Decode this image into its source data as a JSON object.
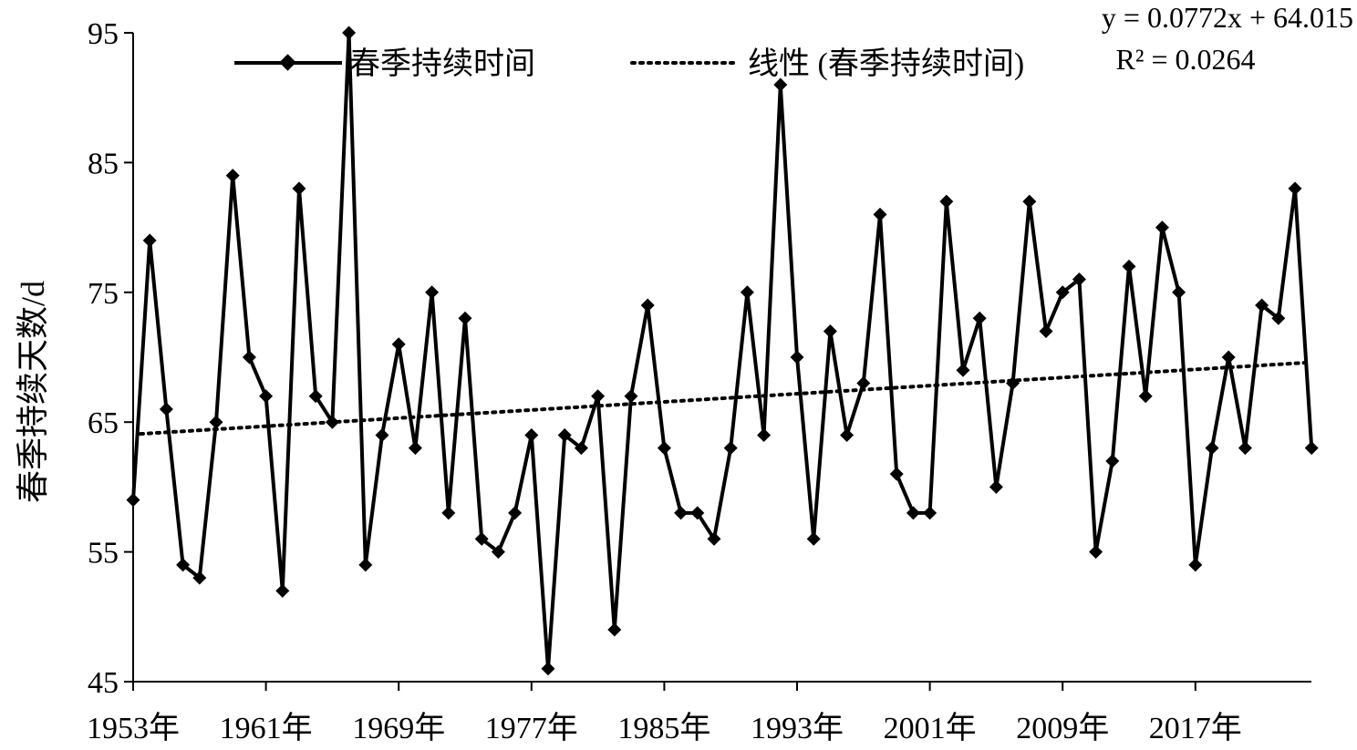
{
  "chart_data": {
    "type": "line",
    "ylabel": "春季持续天数/d",
    "xlabel": "",
    "ylim": [
      45,
      95
    ],
    "yticks": [
      "45",
      "55",
      "65",
      "75",
      "85",
      "95"
    ],
    "xtick_labels": [
      "1953年",
      "1961年",
      "1969年",
      "1977年",
      "1985年",
      "1993年",
      "2001年",
      "2009年",
      "2017年"
    ],
    "x": [
      1953,
      1954,
      1955,
      1956,
      1957,
      1958,
      1959,
      1960,
      1961,
      1962,
      1963,
      1964,
      1965,
      1966,
      1967,
      1968,
      1969,
      1970,
      1971,
      1972,
      1973,
      1974,
      1975,
      1976,
      1977,
      1978,
      1979,
      1980,
      1981,
      1982,
      1983,
      1984,
      1985,
      1986,
      1987,
      1988,
      1989,
      1990,
      1991,
      1992,
      1993,
      1994,
      1995,
      1996,
      1997,
      1998,
      1999,
      2000,
      2001,
      2002,
      2003,
      2004,
      2005,
      2006,
      2007,
      2008,
      2009,
      2010,
      2011,
      2012,
      2013,
      2014,
      2015,
      2016,
      2017,
      2018,
      2019,
      2020,
      2021,
      2022,
      2023,
      2024
    ],
    "series": [
      {
        "name": "春季持续时间",
        "values": [
          59,
          79,
          66,
          54,
          53,
          65,
          84,
          70,
          67,
          52,
          83,
          67,
          65,
          95,
          54,
          64,
          71,
          63,
          75,
          58,
          73,
          56,
          55,
          58,
          64,
          46,
          64,
          63,
          67,
          49,
          67,
          74,
          63,
          58,
          58,
          56,
          63,
          75,
          64,
          91,
          70,
          56,
          72,
          64,
          68,
          81,
          61,
          58,
          58,
          82,
          69,
          73,
          60,
          68,
          82,
          72,
          75,
          76,
          55,
          62,
          77,
          67,
          80,
          75,
          54,
          63,
          70,
          63,
          74,
          73,
          83,
          63
        ]
      }
    ],
    "trendline": {
      "name": "线性 (春季持续时间)",
      "slope": 0.0772,
      "intercept": 64.015,
      "equation": "y = 0.0772x + 64.015",
      "r_squared": "R² = 0.0264"
    },
    "legend_position": "top",
    "grid": false
  },
  "colors": {
    "line": "#000000",
    "background": "#ffffff"
  }
}
